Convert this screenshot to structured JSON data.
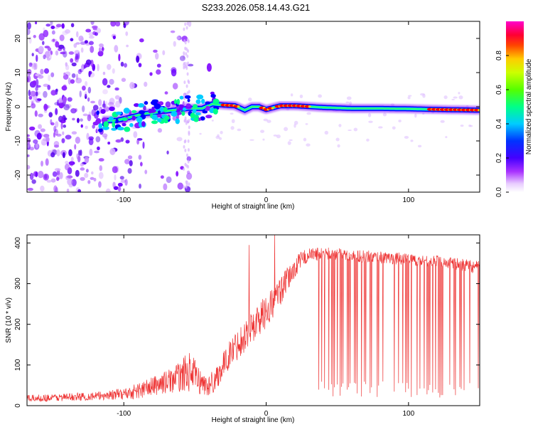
{
  "title": "S233.2026.058.14.43.G21",
  "chart_data": [
    {
      "type": "heatmap",
      "title": "S233.2026.058.14.43.G21",
      "xlabel": "Height of straight line (km)",
      "ylabel": "Frequency (Hz)",
      "xlim": [
        -168,
        150
      ],
      "ylim": [
        -25,
        25
      ],
      "xticks": [
        -100,
        0,
        100
      ],
      "yticks": [
        -20,
        -10,
        0,
        10,
        20
      ],
      "colorbar": {
        "label": "Normalized spectral amplitude",
        "range": [
          0,
          1
        ],
        "ticks": [
          "0.0",
          "0.2",
          "0.4",
          "0.6",
          "0.8"
        ],
        "colormap": [
          "#ffffff",
          "#cc66ff",
          "#7700ff",
          "#0000ff",
          "#00ccff",
          "#00ff66",
          "#88ff00",
          "#ffff00",
          "#ff8800",
          "#ff0000",
          "#ff0066",
          "#ff00cc"
        ]
      },
      "ridge": {
        "description": "dominant frequency trace",
        "x": [
          -115,
          -105,
          -95,
          -85,
          -75,
          -65,
          -55,
          -45,
          -38,
          -30,
          -22,
          -15,
          -10,
          -5,
          0,
          10,
          20,
          40,
          60,
          80,
          100,
          120,
          150
        ],
        "y": [
          -4,
          -4,
          -3,
          -2,
          -1.5,
          -1,
          -0.5,
          -0.5,
          0.8,
          0.5,
          0.3,
          -1,
          0,
          0,
          -0.8,
          0.3,
          0.3,
          -0.2,
          -0.5,
          -0.5,
          -0.6,
          -0.8,
          -1
        ],
        "peak_segments": [
          [
            -30,
            -20
          ],
          [
            -3,
            3
          ],
          [
            8,
            30
          ],
          [
            115,
            150
          ]
        ]
      },
      "outlier": {
        "x": -40,
        "y": 11.5
      }
    },
    {
      "type": "line",
      "xlabel": "Height of straight line (km)",
      "ylabel": "SNR (10 * v/v)",
      "xlim": [
        -168,
        150
      ],
      "ylim": [
        0,
        420
      ],
      "xticks": [
        -100,
        0,
        100
      ],
      "yticks": [
        0,
        100,
        200,
        300,
        400
      ],
      "color": "#ee3333",
      "envelope": {
        "x": [
          -168,
          -120,
          -100,
          -90,
          -80,
          -70,
          -60,
          -55,
          -50,
          -45,
          -40,
          -35,
          -30,
          -25,
          -20,
          -15,
          -10,
          -5,
          0,
          5,
          10,
          15,
          20,
          25,
          30,
          40,
          50,
          60,
          70,
          80,
          90,
          100,
          110,
          120,
          130,
          140,
          150
        ],
        "baseline": [
          15,
          20,
          25,
          30,
          40,
          50,
          60,
          70,
          60,
          45,
          40,
          60,
          90,
          120,
          140,
          160,
          180,
          200,
          220,
          240,
          270,
          300,
          330,
          355,
          365,
          370,
          368,
          365,
          362,
          360,
          358,
          355,
          352,
          350,
          345,
          340,
          335
        ],
        "spread": [
          12,
          15,
          20,
          30,
          35,
          40,
          55,
          70,
          60,
          40,
          40,
          45,
          45,
          50,
          55,
          55,
          60,
          60,
          60,
          60,
          50,
          45,
          35,
          30,
          25,
          22,
          22,
          22,
          22,
          22,
          22,
          22,
          22,
          22,
          22,
          22,
          22
        ]
      },
      "spikes_up": [
        {
          "x": 6,
          "y": 420
        },
        {
          "x": -12,
          "y": 395
        }
      ],
      "dropouts": {
        "x_range": [
          33,
          150
        ],
        "count": 70,
        "min_y": 20
      }
    }
  ]
}
